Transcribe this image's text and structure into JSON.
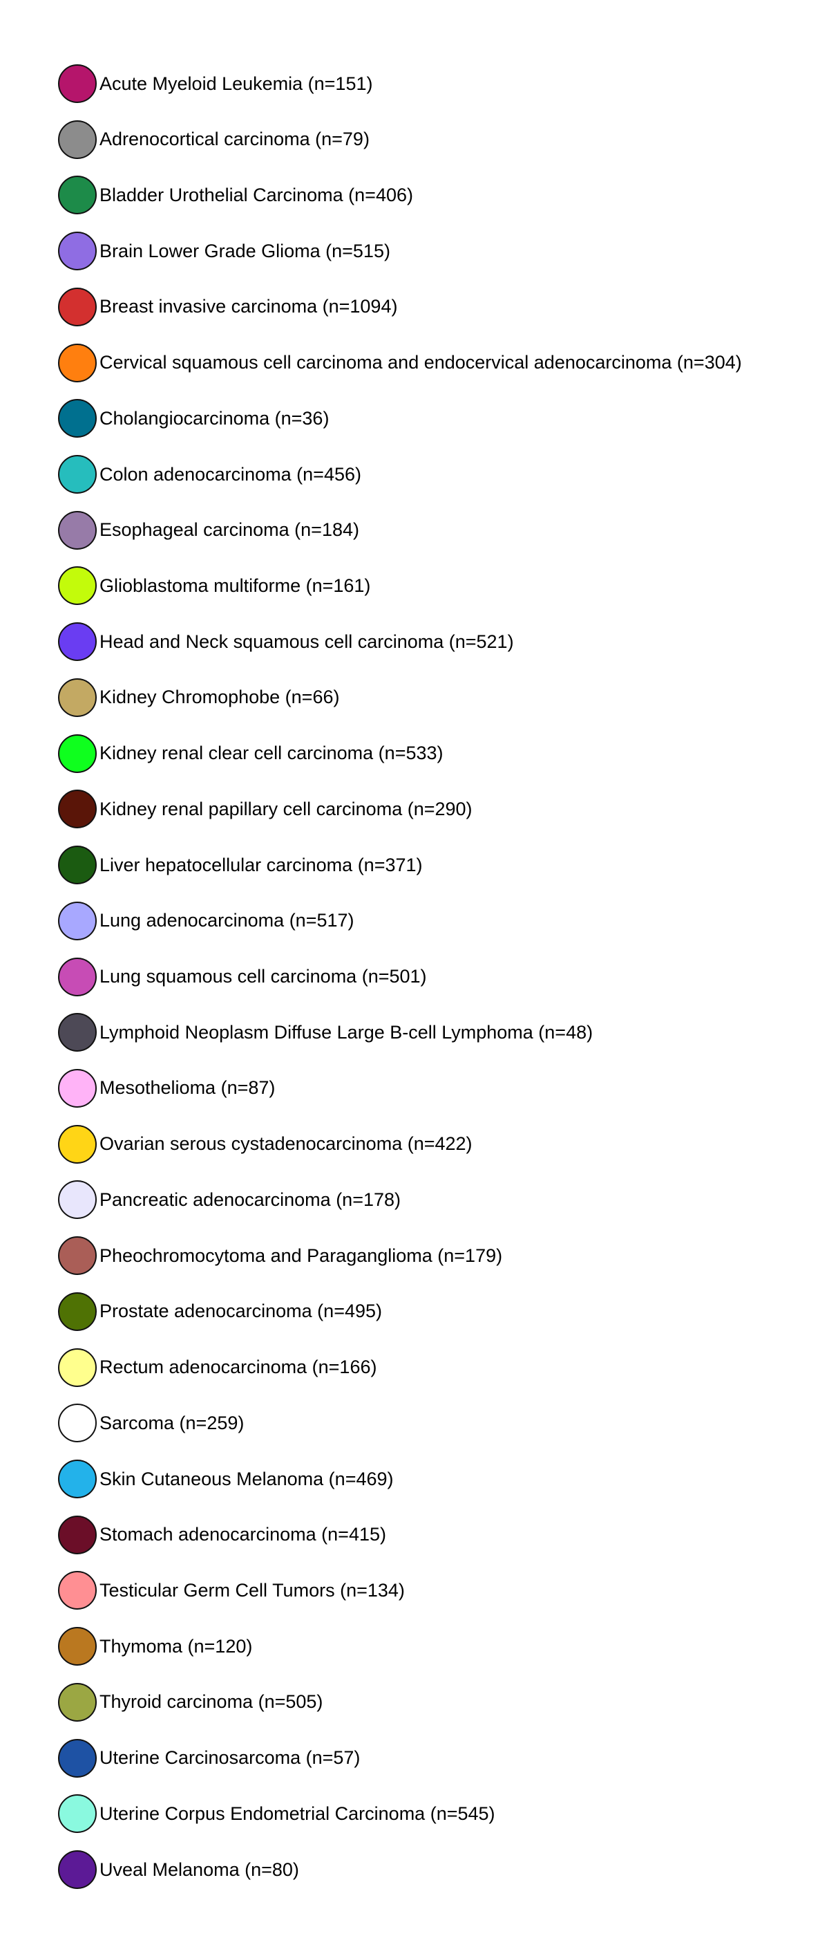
{
  "chart_data": {
    "type": "legend",
    "entries": [
      {
        "label": "Acute Myeloid Leukemia (n=151)",
        "color": "#B5156B"
      },
      {
        "label": "Adrenocortical carcinoma (n=79)",
        "color": "#8C8C8C"
      },
      {
        "label": "Bladder Urothelial Carcinoma (n=406)",
        "color": "#1D8B49"
      },
      {
        "label": "Brain Lower Grade Glioma (n=515)",
        "color": "#8F6DE3"
      },
      {
        "label": "Breast invasive carcinoma (n=1094)",
        "color": "#D3302F"
      },
      {
        "label": "Cervical squamous cell carcinoma and endocervical adenocarcinoma (n=304)",
        "color": "#FF7F0F"
      },
      {
        "label": "Cholangiocarcinoma (n=36)",
        "color": "#00708F"
      },
      {
        "label": "Colon adenocarcinoma (n=456)",
        "color": "#26BDBD"
      },
      {
        "label": "Esophageal carcinoma (n=184)",
        "color": "#977BA8"
      },
      {
        "label": "Glioblastoma multiforme (n=161)",
        "color": "#C3FB0B"
      },
      {
        "label": "Head and Neck squamous cell carcinoma (n=521)",
        "color": "#6A3DF2"
      },
      {
        "label": "Kidney Chromophobe (n=66)",
        "color": "#C3A963"
      },
      {
        "label": "Kidney renal clear cell carcinoma (n=533)",
        "color": "#0FFF1E"
      },
      {
        "label": "Kidney renal papillary cell carcinoma (n=290)",
        "color": "#5A1508"
      },
      {
        "label": "Liver hepatocellular carcinoma (n=371)",
        "color": "#1B5B11"
      },
      {
        "label": "Lung adenocarcinoma (n=517)",
        "color": "#A8A8FF"
      },
      {
        "label": "Lung squamous cell carcinoma (n=501)",
        "color": "#C74CB5"
      },
      {
        "label": "Lymphoid Neoplasm Diffuse Large B-cell Lymphoma (n=48)",
        "color": "#4D4956"
      },
      {
        "label": "Mesothelioma (n=87)",
        "color": "#FFB3F7"
      },
      {
        "label": "Ovarian serous cystadenocarcinoma (n=422)",
        "color": "#FFD516"
      },
      {
        "label": "Pancreatic adenocarcinoma (n=178)",
        "color": "#E8E6FC"
      },
      {
        "label": "Pheochromocytoma and Paraganglioma (n=179)",
        "color": "#AA5E57"
      },
      {
        "label": "Prostate adenocarcinoma (n=495)",
        "color": "#4F7204"
      },
      {
        "label": "Rectum adenocarcinoma (n=166)",
        "color": "#FFFF8D"
      },
      {
        "label": "Sarcoma (n=259)",
        "color": "#FFFFFF"
      },
      {
        "label": "Skin Cutaneous Melanoma (n=469)",
        "color": "#23B2EA"
      },
      {
        "label": "Stomach adenocarcinoma (n=415)",
        "color": "#6B0E28"
      },
      {
        "label": "Testicular Germ Cell Tumors (n=134)",
        "color": "#FF8F93"
      },
      {
        "label": "Thymoma (n=120)",
        "color": "#BA7820"
      },
      {
        "label": "Thyroid carcinoma (n=505)",
        "color": "#9BA743"
      },
      {
        "label": "Uterine Carcinosarcoma (n=57)",
        "color": "#1E52A4"
      },
      {
        "label": "Uterine Corpus Endometrial Carcinoma (n=545)",
        "color": "#8AF9DF"
      },
      {
        "label": "Uveal Melanoma (n=80)",
        "color": "#5C1A96"
      }
    ]
  }
}
